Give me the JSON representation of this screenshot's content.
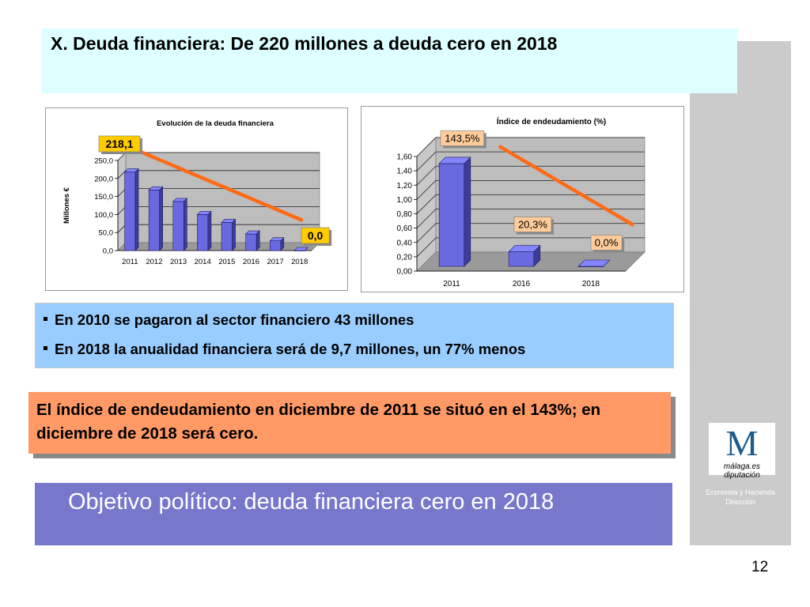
{
  "title": "X. Deuda financiera: De 220 millones a deuda cero en 2018",
  "colors": {
    "bar": "#6a6ae0",
    "bar_side": "#3c3c9c",
    "arrow": "#ff6a14",
    "label_fill_yellow": "#ffcc00",
    "label_fill_peach": "#ffcc99"
  },
  "chart_data": [
    {
      "type": "bar",
      "title": "Evolución de la deuda financiera",
      "xlabel": "",
      "ylabel": "Millones €",
      "ylim": [
        0,
        250
      ],
      "yticks": [
        "0,0",
        "50,0",
        "100,0",
        "150,0",
        "200,0",
        "250,0"
      ],
      "categories": [
        "2011",
        "2012",
        "2013",
        "2014",
        "2015",
        "2016",
        "2017",
        "2018"
      ],
      "values": [
        218.1,
        168,
        136,
        100,
        78,
        46,
        27,
        0
      ],
      "grid": true,
      "annotations": {
        "start": "218,1",
        "end": "0,0"
      }
    },
    {
      "type": "bar",
      "title": "Índice de endeudamiento (%)",
      "xlabel": "",
      "ylabel": "",
      "ylim": [
        0,
        1.6
      ],
      "yticks": [
        "0,00",
        "0,20",
        "0,40",
        "0,60",
        "0,80",
        "1,00",
        "1,20",
        "1,40",
        "1,60"
      ],
      "categories": [
        "2011",
        "2016",
        "2018"
      ],
      "values": [
        1.435,
        0.203,
        0.0
      ],
      "grid": true,
      "annotations": {
        "v1": "143,5%",
        "v2": "20,3%",
        "v3": "0,0%"
      }
    }
  ],
  "bullets": [
    "En 2010 se pagaron al sector financiero 43 millones",
    "En 2018 la anualidad financiera será de 9,7 millones, un 77% menos"
  ],
  "highlight": "El índice de endeudamiento en diciembre de 2011 se situó en el 143%; en diciembre de 2018 será cero.",
  "objective": "Objetivo político: deuda financiera cero en 2018",
  "logo": {
    "letter": "M",
    "text": "málaga.es diputación"
  },
  "dept_lines": [
    "Economía y Hacienda",
    "Dirección"
  ],
  "page_number": "12"
}
